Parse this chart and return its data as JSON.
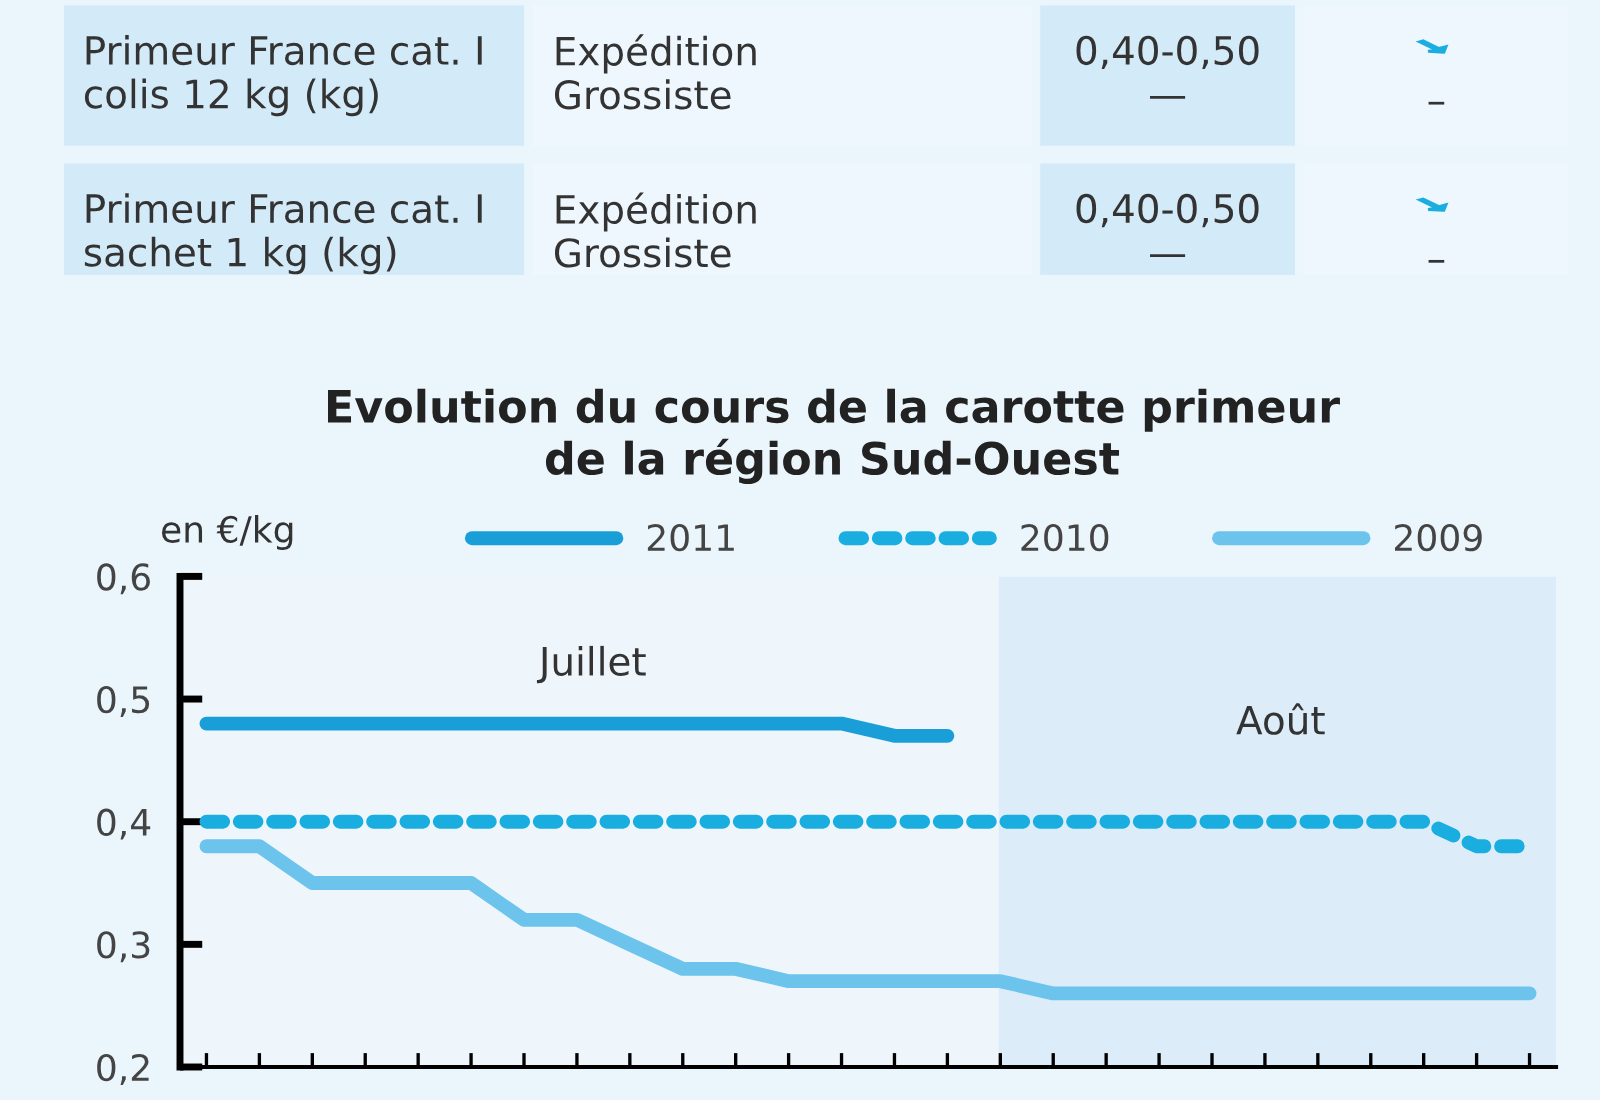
{
  "chart_data": [
    {
      "type": "other",
      "annotations": [
        "Primeur France cat. I\ncolis 12 kg (kg)",
        "Expédition\nGrossiste",
        "0,40-0,50\n—",
        "–",
        "Primeur France cat. I\nsachet 1 kg (kg)",
        "Expédition\nGrossiste",
        "0,40-0,50\n—",
        "–"
      ]
    },
    {
      "type": "line",
      "title": "Evolution du cours de la carotte primeur\nde la région Sud-Ouest",
      "ylabel": "en €/kg",
      "categories": [
        null,
        null,
        null,
        null,
        null,
        null,
        null,
        null,
        null,
        null,
        null,
        null,
        null,
        null,
        null,
        null,
        null,
        null,
        null,
        null,
        null,
        null,
        null,
        null,
        null,
        null
      ],
      "series": [
        {
          "name": "2011",
          "color": "#1a9ed8",
          "line_style": "solid",
          "values": [
            0.48,
            0.48,
            0.48,
            0.48,
            0.48,
            0.48,
            0.48,
            0.48,
            0.48,
            0.48,
            0.48,
            0.48,
            0.48,
            0.47,
            0.47,
            null,
            null,
            null,
            null,
            null,
            null,
            null,
            null,
            null,
            null,
            null
          ]
        },
        {
          "name": "2010",
          "color": "#1aaee0",
          "line_style": "dashed",
          "values": [
            0.4,
            0.4,
            0.4,
            0.4,
            0.4,
            0.4,
            0.4,
            0.4,
            0.4,
            0.4,
            0.4,
            0.4,
            0.4,
            0.4,
            0.4,
            0.4,
            0.4,
            0.4,
            0.4,
            0.4,
            0.4,
            0.4,
            0.4,
            0.4,
            0.38,
            0.38
          ]
        },
        {
          "name": "2009",
          "color": "#6cc4ec",
          "line_style": "solid",
          "values": [
            0.38,
            0.38,
            0.35,
            0.35,
            0.35,
            0.35,
            0.32,
            0.32,
            0.3,
            0.28,
            0.28,
            0.27,
            0.27,
            0.27,
            0.27,
            0.27,
            0.26,
            0.26,
            0.26,
            0.26,
            0.26,
            0.26,
            0.26,
            0.26,
            0.26,
            0.26
          ]
        }
      ],
      "ylim": [
        0.2,
        0.6
      ],
      "yticks": [
        {
          "value": 0.2,
          "label": "0,2"
        },
        {
          "value": 0.3,
          "label": "0,3"
        },
        {
          "value": 0.4,
          "label": "0,4"
        },
        {
          "value": 0.5,
          "label": "0,5"
        },
        {
          "value": 0.6,
          "label": "0,6"
        }
      ],
      "annotations": [
        "Juillet",
        "Août"
      ],
      "legend": "top",
      "grid": false,
      "marker": "none"
    }
  ]
}
